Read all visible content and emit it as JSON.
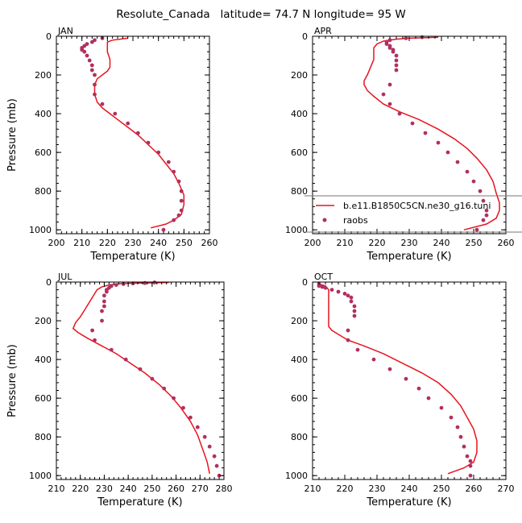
{
  "figure": {
    "title": "Resolute_Canada   latitude= 74.7 N longitude= 95 W"
  },
  "legend": {
    "model_label": "b.e11.B1850C5CN.ne30_g16.tuni",
    "obs_label": "raobs",
    "model_color": "#e8141e",
    "obs_color": "#b03060"
  },
  "chart_data": [
    {
      "type": "line",
      "title": "JAN",
      "xlabel": "Temperature (K)",
      "ylabel": "Pressure (mb)",
      "xlim": [
        200,
        260
      ],
      "ylim": [
        1020,
        0
      ],
      "xticks": [
        200,
        210,
        220,
        230,
        240,
        250,
        260
      ],
      "xtick_labels": [
        "200",
        "210",
        "220",
        "230",
        "240",
        "250",
        "260"
      ],
      "yticks": [
        0,
        200,
        400,
        600,
        800,
        1000
      ],
      "ytick_labels": [
        "0",
        "200",
        "400",
        "600",
        "800",
        "1000"
      ],
      "series": [
        {
          "name": "b.e11.B1850C5CN.ne30_g16.tuni",
          "kind": "line",
          "x": [
            228,
            222,
            220,
            220,
            220,
            221,
            221,
            220,
            218,
            216,
            215,
            215,
            216,
            218,
            221,
            224,
            228,
            232,
            236,
            240,
            243,
            246,
            248,
            250,
            250,
            249,
            246,
            243,
            237
          ],
          "y": [
            10,
            20,
            30,
            50,
            80,
            120,
            160,
            180,
            200,
            220,
            250,
            300,
            340,
            370,
            400,
            430,
            470,
            510,
            560,
            610,
            660,
            710,
            760,
            820,
            870,
            920,
            950,
            970,
            990
          ]
        },
        {
          "name": "raobs",
          "kind": "scatter",
          "x": [
            218,
            215,
            214,
            212,
            211,
            210,
            210,
            211,
            212,
            213,
            214,
            214,
            215,
            215,
            215,
            218,
            223,
            228,
            232,
            236,
            240,
            244,
            246,
            248,
            249,
            249,
            249,
            248,
            246,
            242
          ],
          "y": [
            10,
            20,
            30,
            40,
            50,
            60,
            70,
            80,
            100,
            125,
            150,
            175,
            200,
            250,
            300,
            350,
            400,
            450,
            500,
            550,
            600,
            650,
            700,
            750,
            800,
            850,
            900,
            925,
            950,
            1000
          ]
        }
      ]
    },
    {
      "type": "line",
      "title": "APR",
      "xlabel": "Temperature (K)",
      "ylabel": "",
      "xlim": [
        200,
        260
      ],
      "ylim": [
        1020,
        0
      ],
      "xticks": [
        200,
        210,
        220,
        230,
        240,
        250,
        260
      ],
      "xtick_labels": [
        "200",
        "210",
        "220",
        "230",
        "240",
        "250",
        "260"
      ],
      "yticks": [
        0,
        200,
        400,
        600,
        800,
        1000
      ],
      "ytick_labels": [
        "0",
        "200",
        "400",
        "600",
        "800",
        "1000"
      ],
      "series": [
        {
          "name": "b.e11.B1850C5CN.ne30_g16.tuni",
          "kind": "line",
          "x": [
            239,
            230,
            226,
            222,
            220,
            219,
            219,
            219,
            218,
            217,
            216,
            216,
            217,
            219,
            222,
            227,
            233,
            239,
            244,
            248,
            251,
            254,
            256,
            257,
            258,
            258,
            257,
            254,
            247
          ],
          "y": [
            5,
            10,
            15,
            25,
            40,
            60,
            90,
            120,
            160,
            200,
            230,
            250,
            280,
            310,
            350,
            390,
            430,
            480,
            530,
            580,
            630,
            690,
            750,
            810,
            860,
            900,
            940,
            970,
            1000
          ]
        },
        {
          "name": "raobs",
          "kind": "scatter",
          "x": [
            234,
            229,
            224,
            223,
            223,
            224,
            224,
            225,
            225,
            226,
            226,
            226,
            226,
            224,
            222,
            224,
            227,
            231,
            235,
            239,
            242,
            245,
            248,
            250,
            252,
            253,
            254,
            254,
            253,
            251
          ],
          "y": [
            5,
            10,
            20,
            30,
            40,
            50,
            60,
            70,
            80,
            100,
            125,
            150,
            175,
            250,
            300,
            350,
            400,
            450,
            500,
            550,
            600,
            650,
            700,
            750,
            800,
            850,
            900,
            925,
            950,
            1000
          ]
        }
      ]
    },
    {
      "type": "line",
      "title": "JUL",
      "xlabel": "Temperature (K)",
      "ylabel": "Pressure (mb)",
      "xlim": [
        210,
        280
      ],
      "ylim": [
        1020,
        0
      ],
      "xticks": [
        210,
        220,
        230,
        240,
        250,
        260,
        270,
        280
      ],
      "xtick_labels": [
        "210",
        "220",
        "230",
        "240",
        "250",
        "260",
        "270",
        "280"
      ],
      "yticks": [
        0,
        200,
        400,
        600,
        800,
        1000
      ],
      "ytick_labels": [
        "0",
        "200",
        "400",
        "600",
        "800",
        "1000"
      ],
      "series": [
        {
          "name": "b.e11.B1850C5CN.ne30_g16.tuni",
          "kind": "line",
          "x": [
            257,
            245,
            237,
            232,
            229,
            227,
            226,
            224,
            222,
            220,
            218,
            217,
            219,
            223,
            229,
            235,
            241,
            247,
            253,
            258,
            262,
            266,
            269,
            271,
            273,
            274
          ],
          "y": [
            2,
            5,
            8,
            15,
            25,
            40,
            60,
            100,
            140,
            180,
            210,
            240,
            260,
            290,
            330,
            370,
            420,
            470,
            530,
            590,
            650,
            720,
            790,
            860,
            930,
            990
          ]
        },
        {
          "name": "raobs",
          "kind": "scatter",
          "x": [
            251,
            247,
            242,
            238,
            235,
            233,
            232,
            231,
            231,
            230,
            230,
            230,
            229,
            229,
            225,
            226,
            233,
            239,
            245,
            250,
            255,
            259,
            263,
            266,
            269,
            272,
            274,
            276,
            277,
            278
          ],
          "y": [
            2,
            5,
            7,
            10,
            15,
            20,
            30,
            40,
            50,
            70,
            100,
            125,
            150,
            200,
            250,
            300,
            350,
            400,
            450,
            500,
            550,
            600,
            650,
            700,
            750,
            800,
            850,
            900,
            950,
            1000
          ]
        }
      ]
    },
    {
      "type": "line",
      "title": "OCT",
      "xlabel": "Temperature (K)",
      "ylabel": "",
      "xlim": [
        210,
        270
      ],
      "ylim": [
        1020,
        0
      ],
      "xticks": [
        210,
        220,
        230,
        240,
        250,
        260,
        270
      ],
      "xtick_labels": [
        "210",
        "220",
        "230",
        "240",
        "250",
        "260",
        "270"
      ],
      "yticks": [
        0,
        200,
        400,
        600,
        800,
        1000
      ],
      "ytick_labels": [
        "0",
        "200",
        "400",
        "600",
        "800",
        "1000"
      ],
      "series": [
        {
          "name": "b.e11.B1850C5CN.ne30_g16.tuni",
          "kind": "line",
          "x": [
            212,
            214,
            215,
            215,
            215,
            215,
            215,
            215,
            215,
            216,
            218,
            221,
            226,
            232,
            238,
            244,
            249,
            253,
            256,
            258,
            260,
            261,
            261,
            260,
            257,
            252
          ],
          "y": [
            10,
            20,
            40,
            70,
            100,
            140,
            180,
            210,
            230,
            250,
            270,
            300,
            330,
            370,
            420,
            470,
            520,
            580,
            640,
            700,
            760,
            820,
            880,
            930,
            960,
            990
          ]
        },
        {
          "name": "raobs",
          "kind": "scatter",
          "x": [
            212,
            212,
            213,
            214,
            216,
            218,
            220,
            221,
            222,
            222,
            223,
            223,
            223,
            221,
            221,
            224,
            229,
            234,
            239,
            243,
            246,
            250,
            253,
            255,
            256,
            257,
            258,
            259,
            259,
            259
          ],
          "y": [
            10,
            20,
            25,
            30,
            40,
            50,
            60,
            70,
            80,
            100,
            125,
            150,
            175,
            250,
            300,
            350,
            400,
            450,
            500,
            550,
            600,
            650,
            700,
            750,
            800,
            850,
            900,
            925,
            950,
            1000
          ]
        }
      ]
    }
  ]
}
